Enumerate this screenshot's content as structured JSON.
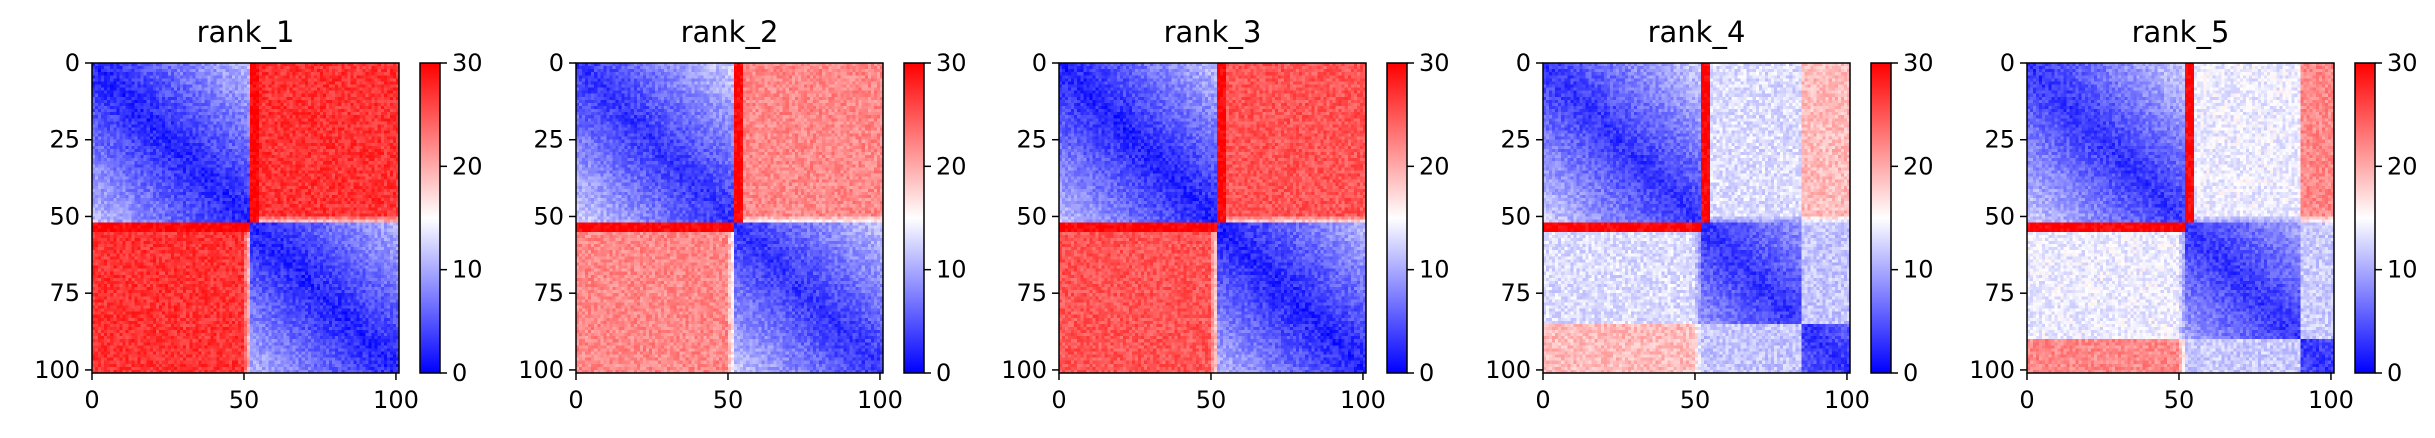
{
  "chart_data": [
    {
      "type": "heatmap",
      "title": "rank_1",
      "xticks": [
        0,
        50,
        100
      ],
      "yticks": [
        0,
        25,
        50,
        75,
        100
      ],
      "xlim": [
        0,
        101
      ],
      "ylim": [
        101,
        0
      ],
      "colorbar": {
        "ticks": [
          0,
          10,
          20,
          30
        ],
        "range": [
          0,
          30
        ],
        "colormap": "bwr"
      },
      "boundary": 52,
      "offdiag_high": 27,
      "diag_low": 2,
      "clusters": [
        {
          "start": 52,
          "end": 101,
          "level": 27
        }
      ]
    },
    {
      "type": "heatmap",
      "title": "rank_2",
      "xticks": [
        0,
        50,
        100
      ],
      "yticks": [
        0,
        25,
        50,
        75,
        100
      ],
      "xlim": [
        0,
        101
      ],
      "ylim": [
        101,
        0
      ],
      "colorbar": {
        "ticks": [
          0,
          10,
          20,
          30
        ],
        "range": [
          0,
          30
        ],
        "colormap": "bwr"
      },
      "boundary": 52,
      "offdiag_high": 22,
      "diag_low": 3,
      "clusters": [
        {
          "start": 52,
          "end": 101,
          "level": 22
        }
      ]
    },
    {
      "type": "heatmap",
      "title": "rank_3",
      "xticks": [
        0,
        50,
        100
      ],
      "yticks": [
        0,
        25,
        50,
        75,
        100
      ],
      "xlim": [
        0,
        101
      ],
      "ylim": [
        101,
        0
      ],
      "colorbar": {
        "ticks": [
          0,
          10,
          20,
          30
        ],
        "range": [
          0,
          30
        ],
        "colormap": "bwr"
      },
      "boundary": 52,
      "offdiag_high": 25,
      "diag_low": 2,
      "clusters": [
        {
          "start": 52,
          "end": 101,
          "level": 25
        }
      ]
    },
    {
      "type": "heatmap",
      "title": "rank_4",
      "xticks": [
        0,
        50,
        100
      ],
      "yticks": [
        0,
        25,
        50,
        75,
        100
      ],
      "xlim": [
        0,
        101
      ],
      "ylim": [
        101,
        0
      ],
      "colorbar": {
        "ticks": [
          0,
          10,
          20,
          30
        ],
        "range": [
          0,
          30
        ],
        "colormap": "bwr"
      },
      "boundary": 52,
      "offdiag_high": 14,
      "diag_low": 3,
      "clusters": [
        {
          "start": 52,
          "end": 85,
          "level": 13
        },
        {
          "start": 85,
          "end": 101,
          "level": 19
        }
      ]
    },
    {
      "type": "heatmap",
      "title": "rank_5",
      "xticks": [
        0,
        50,
        100
      ],
      "yticks": [
        0,
        25,
        50,
        75,
        100
      ],
      "xlim": [
        0,
        101
      ],
      "ylim": [
        101,
        0
      ],
      "colorbar": {
        "ticks": [
          0,
          10,
          20,
          30
        ],
        "range": [
          0,
          30
        ],
        "colormap": "bwr"
      },
      "boundary": 52,
      "offdiag_high": 15,
      "diag_low": 3,
      "clusters": [
        {
          "start": 52,
          "end": 90,
          "level": 14
        },
        {
          "start": 90,
          "end": 101,
          "level": 22
        }
      ]
    }
  ],
  "colors": {
    "low": "#0000ff",
    "mid": "#ffffff",
    "high": "#ff0000"
  }
}
